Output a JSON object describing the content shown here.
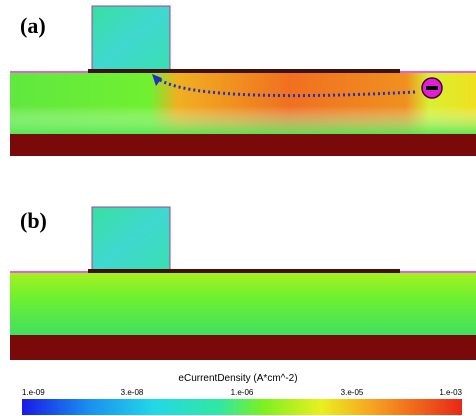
{
  "panels": [
    {
      "label": "(a)"
    },
    {
      "label": "(b)"
    }
  ],
  "colorbar": {
    "title": "eCurrentDensity (A*cm^-2)",
    "ticks": [
      "1.e-09",
      "3.e-08",
      "1.e-06",
      "3.e-05",
      "1.e-03"
    ]
  }
}
